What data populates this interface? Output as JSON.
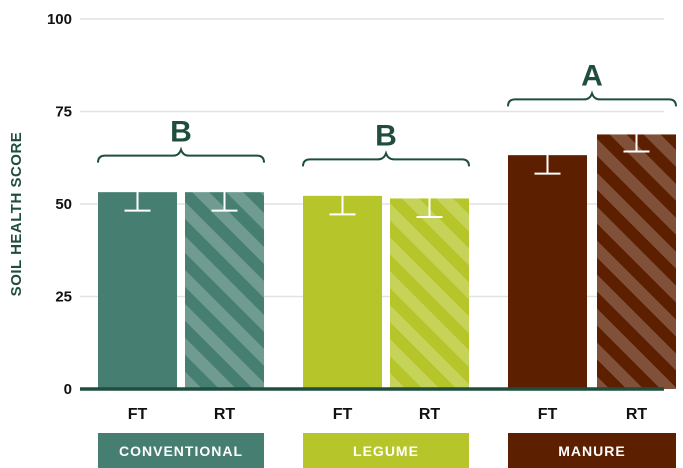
{
  "chart_data": {
    "type": "bar",
    "title": "",
    "xlabel": "",
    "ylabel": "SOIL HEALTH SCORE",
    "ylim": [
      0,
      100
    ],
    "yticks": [
      0,
      25,
      50,
      75,
      100
    ],
    "grid": true,
    "categories": [
      "FT",
      "RT",
      "FT",
      "RT",
      "FT",
      "RT"
    ],
    "groups": [
      {
        "label": "CONVENTIONAL",
        "letter": "B",
        "color": "#467f72"
      },
      {
        "label": "LEGUME",
        "letter": "B",
        "color": "#b6c62a"
      },
      {
        "label": "MANURE",
        "letter": "A",
        "color": "#5c1f00"
      }
    ],
    "bars": [
      {
        "group": 0,
        "label": "FT",
        "value": 53.2,
        "error": 5,
        "hatched": false
      },
      {
        "group": 0,
        "label": "RT",
        "value": 53.2,
        "error": 5,
        "hatched": true
      },
      {
        "group": 1,
        "label": "FT",
        "value": 52.2,
        "error": 5,
        "hatched": false
      },
      {
        "group": 1,
        "label": "RT",
        "value": 51.5,
        "error": 5,
        "hatched": true
      },
      {
        "group": 2,
        "label": "FT",
        "value": 63.2,
        "error": 5,
        "hatched": false
      },
      {
        "group": 2,
        "label": "RT",
        "value": 68.8,
        "error": 4.6,
        "hatched": true
      }
    ]
  }
}
